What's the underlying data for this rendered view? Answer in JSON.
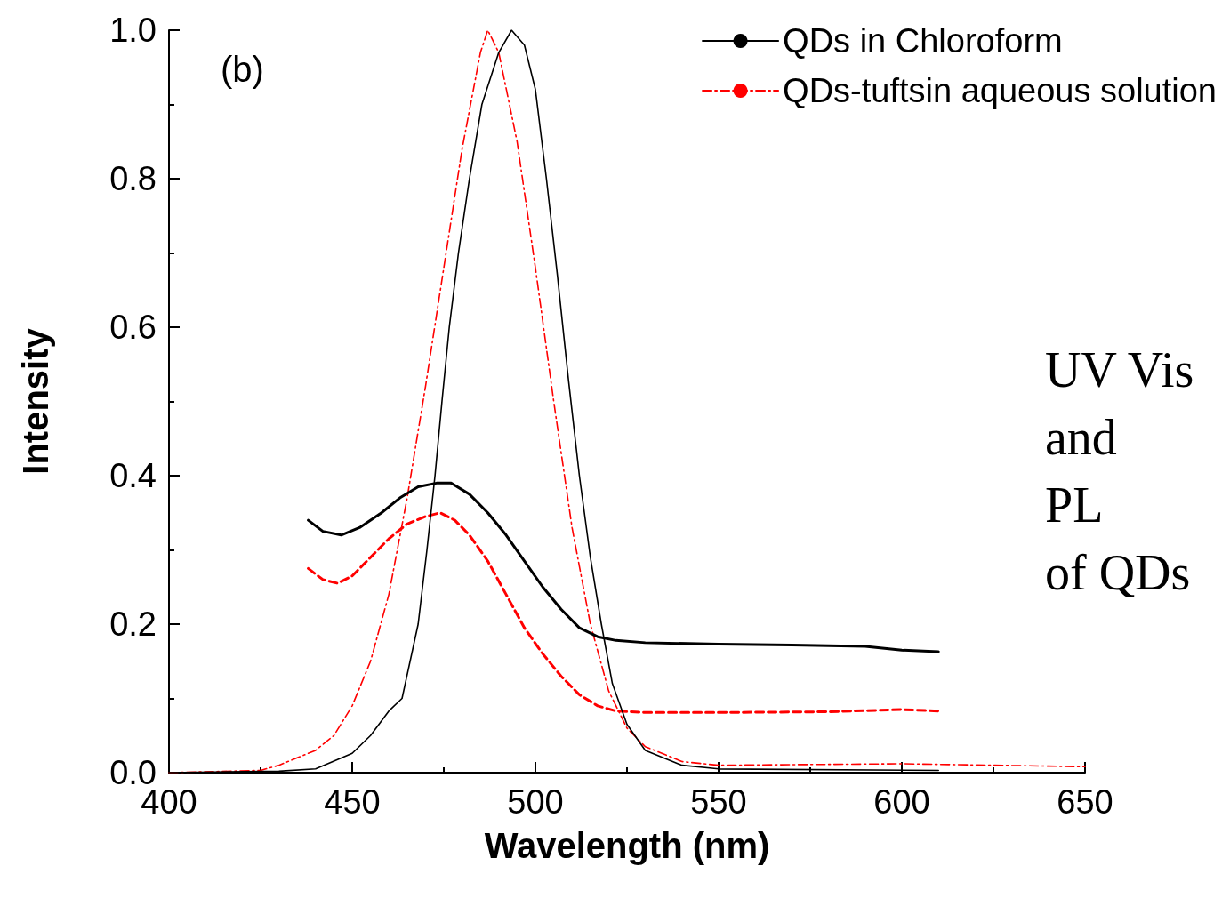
{
  "chart_data": {
    "type": "line",
    "xlabel": "Wavelength (nm)",
    "ylabel": "Intensity",
    "annotations": [
      "(b)",
      "UV Vis\nand\nPL\nof QDs"
    ],
    "xlim": [
      400,
      650
    ],
    "xticks": [
      400,
      450,
      500,
      550,
      600,
      650
    ],
    "ylim": [
      0,
      1
    ],
    "yticks": [
      {
        "value": 0,
        "label": "0.0"
      },
      {
        "value": 0.2,
        "label": "0.2"
      },
      {
        "value": 0.4,
        "label": "0.4"
      },
      {
        "value": 0.6,
        "label": "0.6"
      },
      {
        "value": 0.8,
        "label": "0.8"
      },
      {
        "value": 1,
        "label": "1.0"
      }
    ],
    "grid": false,
    "legend": "top right",
    "marker": "none",
    "series": [
      {
        "name": "QDs in Chloroform",
        "color": "#000000",
        "line_style": "solid",
        "x": [
          400,
          430,
          440,
          450,
          455,
          460,
          463.6,
          468,
          470.4,
          472.6,
          474.5,
          476.5,
          479,
          482,
          485.4,
          490,
          493.5,
          497,
          500,
          503,
          506,
          509,
          512,
          515,
          518,
          521,
          525,
          530,
          540,
          550,
          610
        ],
        "values": [
          0,
          0.002,
          0.005,
          0.026,
          0.05,
          0.083,
          0.1,
          0.2,
          0.3,
          0.4,
          0.5,
          0.6,
          0.7,
          0.8,
          0.9,
          0.97,
          1.0,
          0.98,
          0.92,
          0.8,
          0.67,
          0.53,
          0.4,
          0.29,
          0.2,
          0.12,
          0.065,
          0.03,
          0.01,
          0.005,
          0.003
        ]
      },
      {
        "name": "QDs-tuftsin aqueous solution",
        "color": "#ff0000",
        "line_style": "dashdot",
        "x": [
          400,
          425,
          430,
          440,
          445,
          450,
          455,
          460,
          465,
          470,
          475,
          480,
          485,
          487,
          490,
          495,
          500,
          505,
          510,
          515,
          520,
          525,
          530,
          540,
          550,
          600,
          650
        ],
        "values": [
          0,
          0.003,
          0.01,
          0.03,
          0.05,
          0.09,
          0.15,
          0.24,
          0.37,
          0.52,
          0.68,
          0.84,
          0.97,
          1.0,
          0.97,
          0.85,
          0.68,
          0.5,
          0.33,
          0.2,
          0.11,
          0.06,
          0.035,
          0.015,
          0.01,
          0.012,
          0.008
        ]
      },
      {
        "color": "#000000",
        "line_style": "solid",
        "x": [
          438,
          442,
          447,
          452,
          458,
          463,
          468,
          473,
          477,
          482,
          487,
          492,
          497,
          502,
          507,
          512,
          517,
          522,
          530,
          550,
          570,
          590,
          600,
          610
        ],
        "values": [
          0.34,
          0.325,
          0.32,
          0.33,
          0.35,
          0.37,
          0.385,
          0.39,
          0.39,
          0.375,
          0.35,
          0.32,
          0.285,
          0.25,
          0.22,
          0.195,
          0.183,
          0.178,
          0.175,
          0.173,
          0.172,
          0.17,
          0.165,
          0.163
        ]
      },
      {
        "color": "#ff0000",
        "line_style": "dashed",
        "x": [
          438,
          442,
          446,
          450,
          455,
          460,
          465,
          470,
          474,
          478,
          482,
          487,
          492,
          497,
          502,
          507,
          512,
          517,
          522,
          530,
          550,
          580,
          600,
          610
        ],
        "values": [
          0.275,
          0.26,
          0.255,
          0.265,
          0.29,
          0.315,
          0.335,
          0.345,
          0.35,
          0.34,
          0.32,
          0.285,
          0.24,
          0.195,
          0.16,
          0.13,
          0.105,
          0.09,
          0.083,
          0.081,
          0.081,
          0.082,
          0.085,
          0.083
        ]
      }
    ]
  }
}
